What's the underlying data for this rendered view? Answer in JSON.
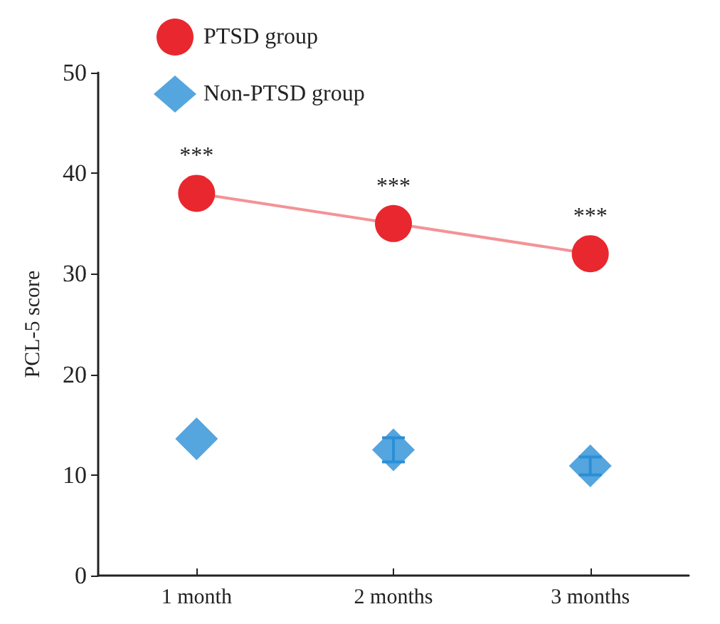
{
  "chart_data": {
    "type": "line",
    "ylabel": "PCL-5 score",
    "categories": [
      "1 month",
      "2 months",
      "3 months"
    ],
    "series": [
      {
        "name": "PTSD group",
        "type": "line",
        "color": "#e8282e",
        "marker": "circle",
        "values": [
          38.0,
          35.0,
          32.0
        ]
      },
      {
        "name": "Non-PTSD group",
        "type": "scatter",
        "color": "#2a8fd6",
        "marker": "diamond",
        "values": [
          13.6,
          12.5,
          10.9
        ],
        "errors": [
          null,
          1.2,
          0.9
        ]
      }
    ],
    "annotations": [
      "***",
      "***",
      "***"
    ],
    "ylim": [
      0,
      50
    ],
    "yticks": [
      0,
      10,
      20,
      30,
      40,
      50
    ],
    "grid": false,
    "legend": "top left"
  }
}
